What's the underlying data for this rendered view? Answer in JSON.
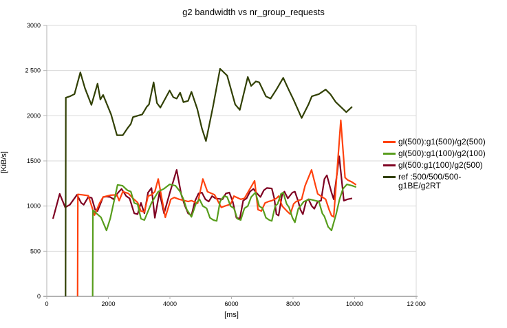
{
  "chart_data": {
    "type": "line",
    "title": "g2 bandwidth vs nr_group_requests",
    "xlabel": "[ms]",
    "ylabel": "[KiB/s]",
    "xlim": [
      0,
      12000
    ],
    "ylim": [
      0,
      3000
    ],
    "grid": "horizontal",
    "legend_position": "right",
    "grid_color": "#d9d9d9",
    "axis_color": "#b3b3b3",
    "x_ticks": [
      0,
      2000,
      4000,
      6000,
      8000,
      10000,
      12000
    ],
    "x_tick_labels": [
      "0",
      "2000",
      "4000",
      "6000",
      "8000",
      "10000",
      "12 000"
    ],
    "y_ticks": [
      0,
      500,
      1000,
      1500,
      2000,
      2500,
      3000
    ],
    "y_tick_labels": [
      "0",
      "500",
      "1000",
      "1500",
      "2000",
      "2 500",
      "3000"
    ],
    "series": [
      {
        "name": "gl(500:g1(100)/g2(500)",
        "legend_lines": [
          "gl(500:g1(100)/g2(500)"
        ],
        "legend_order": 3,
        "color": "#7e0021",
        "points": [
          [
            200,
            860
          ],
          [
            420,
            1135
          ],
          [
            600,
            985
          ],
          [
            750,
            1015
          ],
          [
            980,
            1125
          ],
          [
            1120,
            1035
          ],
          [
            1200,
            1015
          ],
          [
            1350,
            1100
          ],
          [
            1460,
            1090
          ],
          [
            1570,
            960
          ],
          [
            1650,
            945
          ],
          [
            1830,
            1100
          ],
          [
            1940,
            1105
          ],
          [
            2060,
            1100
          ],
          [
            2170,
            1075
          ],
          [
            2320,
            1150
          ],
          [
            2430,
            1190
          ],
          [
            2580,
            1110
          ],
          [
            2690,
            1085
          ],
          [
            2840,
            920
          ],
          [
            2950,
            910
          ],
          [
            3060,
            1035
          ],
          [
            3170,
            920
          ],
          [
            3290,
            1150
          ],
          [
            3400,
            1200
          ],
          [
            3510,
            870
          ],
          [
            3660,
            1150
          ],
          [
            3810,
            920
          ],
          [
            3990,
            1140
          ],
          [
            4220,
            1400
          ],
          [
            4370,
            1125
          ],
          [
            4480,
            1010
          ],
          [
            4590,
            920
          ],
          [
            4700,
            895
          ],
          [
            4810,
            1050
          ],
          [
            4930,
            1140
          ],
          [
            5040,
            1150
          ],
          [
            5150,
            1075
          ],
          [
            5260,
            1050
          ],
          [
            5370,
            1110
          ],
          [
            5480,
            1085
          ],
          [
            5710,
            1075
          ],
          [
            5820,
            1140
          ],
          [
            5930,
            1150
          ],
          [
            6040,
            1050
          ],
          [
            6160,
            870
          ],
          [
            6270,
            860
          ],
          [
            6380,
            1060
          ],
          [
            6490,
            1085
          ],
          [
            6600,
            1160
          ],
          [
            6710,
            1190
          ],
          [
            6830,
            1140
          ],
          [
            6940,
            1100
          ],
          [
            7050,
            1175
          ],
          [
            7150,
            1200
          ],
          [
            7310,
            1195
          ],
          [
            7390,
            1085
          ],
          [
            7460,
            910
          ],
          [
            7530,
            895
          ],
          [
            7650,
            1135
          ],
          [
            7720,
            1160
          ],
          [
            7830,
            1085
          ],
          [
            7980,
            1150
          ],
          [
            8060,
            1160
          ],
          [
            8170,
            1050
          ],
          [
            8240,
            960
          ],
          [
            8320,
            910
          ],
          [
            8430,
            1060
          ],
          [
            8500,
            1075
          ],
          [
            8610,
            1000
          ],
          [
            8690,
            970
          ],
          [
            8800,
            1050
          ],
          [
            8910,
            1060
          ],
          [
            9020,
            1300
          ],
          [
            9100,
            1340
          ],
          [
            9250,
            1150
          ],
          [
            9320,
            1075
          ],
          [
            9500,
            1550
          ],
          [
            9650,
            1060
          ],
          [
            9770,
            1075
          ],
          [
            9920,
            1085
          ]
        ]
      },
      {
        "name": "gl(500):g1(500)/g2(500)",
        "legend_lines": [
          "gl(500):g1(500)/g2(500)"
        ],
        "legend_order": 1,
        "color": "#ff420e",
        "points": [
          [
            1000,
            0
          ],
          [
            1010,
            1130
          ],
          [
            1150,
            1125
          ],
          [
            1350,
            1115
          ],
          [
            1550,
            900
          ],
          [
            1720,
            1035
          ],
          [
            1830,
            1100
          ],
          [
            2060,
            1120
          ],
          [
            2280,
            1125
          ],
          [
            2350,
            1060
          ],
          [
            2470,
            1160
          ],
          [
            2650,
            1140
          ],
          [
            2800,
            1085
          ],
          [
            2950,
            1040
          ],
          [
            3060,
            945
          ],
          [
            3170,
            935
          ],
          [
            3290,
            1110
          ],
          [
            3400,
            1125
          ],
          [
            3510,
            1160
          ],
          [
            3620,
            1300
          ],
          [
            3850,
            875
          ],
          [
            4030,
            1075
          ],
          [
            4140,
            1095
          ],
          [
            4300,
            1075
          ],
          [
            4480,
            1060
          ],
          [
            4590,
            1050
          ],
          [
            4700,
            1060
          ],
          [
            4900,
            1030
          ],
          [
            5070,
            1300
          ],
          [
            5220,
            1160
          ],
          [
            5450,
            1125
          ],
          [
            5670,
            985
          ],
          [
            5780,
            1000
          ],
          [
            5970,
            1020
          ],
          [
            6080,
            1110
          ],
          [
            6300,
            1075
          ],
          [
            6420,
            1085
          ],
          [
            6530,
            1150
          ],
          [
            6750,
            1280
          ],
          [
            6860,
            960
          ],
          [
            6970,
            945
          ],
          [
            7090,
            1035
          ],
          [
            7200,
            1050
          ],
          [
            7310,
            1060
          ],
          [
            7460,
            1085
          ],
          [
            7530,
            1110
          ],
          [
            7650,
            1000
          ],
          [
            7830,
            935
          ],
          [
            7910,
            910
          ],
          [
            8020,
            1025
          ],
          [
            8100,
            1050
          ],
          [
            8280,
            1075
          ],
          [
            8390,
            1225
          ],
          [
            8600,
            1400
          ],
          [
            8730,
            1225
          ],
          [
            8800,
            1135
          ],
          [
            8950,
            1100
          ],
          [
            9060,
            1075
          ],
          [
            9170,
            960
          ],
          [
            9250,
            895
          ],
          [
            9320,
            880
          ],
          [
            9550,
            1950
          ],
          [
            9690,
            1315
          ],
          [
            9770,
            1290
          ],
          [
            9920,
            1265
          ],
          [
            10050,
            1235
          ]
        ]
      },
      {
        "name": "gl(500):g1(100)/g2(100)",
        "legend_lines": [
          "gl(500):g1(100)/g2(100)"
        ],
        "legend_order": 2,
        "color": "#579d1c",
        "points": [
          [
            1490,
            0
          ],
          [
            1500,
            955
          ],
          [
            1610,
            920
          ],
          [
            1760,
            875
          ],
          [
            1940,
            730
          ],
          [
            2060,
            860
          ],
          [
            2300,
            1235
          ],
          [
            2460,
            1225
          ],
          [
            2620,
            1175
          ],
          [
            2730,
            1160
          ],
          [
            2840,
            1035
          ],
          [
            2950,
            1020
          ],
          [
            3060,
            860
          ],
          [
            3170,
            845
          ],
          [
            3400,
            1035
          ],
          [
            3620,
            1160
          ],
          [
            3800,
            1190
          ],
          [
            3990,
            1240
          ],
          [
            4180,
            1225
          ],
          [
            4330,
            1160
          ],
          [
            4440,
            1075
          ],
          [
            4550,
            960
          ],
          [
            4700,
            880
          ],
          [
            4850,
            1030
          ],
          [
            4960,
            1075
          ],
          [
            5070,
            1000
          ],
          [
            5190,
            975
          ],
          [
            5300,
            870
          ],
          [
            5410,
            845
          ],
          [
            5520,
            835
          ],
          [
            5630,
            1050
          ],
          [
            5750,
            1110
          ],
          [
            5860,
            1100
          ],
          [
            5970,
            1000
          ],
          [
            6080,
            975
          ],
          [
            6190,
            860
          ],
          [
            6300,
            845
          ],
          [
            6420,
            975
          ],
          [
            6530,
            1000
          ],
          [
            6640,
            1100
          ],
          [
            6780,
            1150
          ],
          [
            6900,
            1000
          ],
          [
            7010,
            975
          ],
          [
            7120,
            870
          ],
          [
            7230,
            845
          ],
          [
            7310,
            835
          ],
          [
            7420,
            1000
          ],
          [
            7500,
            1025
          ],
          [
            7610,
            1135
          ],
          [
            7680,
            1150
          ],
          [
            7790,
            1025
          ],
          [
            7870,
            985
          ],
          [
            7980,
            870
          ],
          [
            8060,
            820
          ],
          [
            8170,
            970
          ],
          [
            8240,
            1000
          ],
          [
            8350,
            1050
          ],
          [
            8430,
            1060
          ],
          [
            8540,
            1075
          ],
          [
            8840,
            1050
          ],
          [
            8950,
            920
          ],
          [
            9020,
            885
          ],
          [
            9140,
            770
          ],
          [
            9250,
            730
          ],
          [
            9400,
            910
          ],
          [
            9510,
            1075
          ],
          [
            9620,
            1190
          ],
          [
            9750,
            1240
          ],
          [
            9920,
            1225
          ],
          [
            10050,
            1210
          ]
        ]
      },
      {
        "name": "ref :500/500/500-g1BE/g2RT",
        "legend_lines": [
          "ref :500/500/500-",
          "g1BE/g2RT"
        ],
        "legend_order": 4,
        "color": "#314004",
        "points": [
          [
            610,
            0
          ],
          [
            620,
            2200
          ],
          [
            750,
            2215
          ],
          [
            900,
            2240
          ],
          [
            1090,
            2480
          ],
          [
            1240,
            2305
          ],
          [
            1450,
            2120
          ],
          [
            1650,
            2355
          ],
          [
            1740,
            2180
          ],
          [
            1830,
            2230
          ],
          [
            2090,
            2015
          ],
          [
            2280,
            1785
          ],
          [
            2470,
            1785
          ],
          [
            2620,
            1860
          ],
          [
            2730,
            1910
          ],
          [
            2800,
            1985
          ],
          [
            2950,
            2000
          ],
          [
            3100,
            2015
          ],
          [
            3250,
            2100
          ],
          [
            3320,
            2125
          ],
          [
            3470,
            2370
          ],
          [
            3580,
            2140
          ],
          [
            3690,
            2090
          ],
          [
            3990,
            2280
          ],
          [
            4110,
            2205
          ],
          [
            4220,
            2190
          ],
          [
            4330,
            2255
          ],
          [
            4440,
            2150
          ],
          [
            4590,
            2165
          ],
          [
            4700,
            2265
          ],
          [
            4890,
            2075
          ],
          [
            5040,
            1860
          ],
          [
            5170,
            1720
          ],
          [
            5400,
            2100
          ],
          [
            5630,
            2520
          ],
          [
            5860,
            2445
          ],
          [
            6120,
            2125
          ],
          [
            6270,
            2065
          ],
          [
            6530,
            2430
          ],
          [
            6640,
            2330
          ],
          [
            6790,
            2380
          ],
          [
            6900,
            2370
          ],
          [
            7120,
            2215
          ],
          [
            7270,
            2190
          ],
          [
            7460,
            2290
          ],
          [
            7680,
            2420
          ],
          [
            7870,
            2280
          ],
          [
            8020,
            2175
          ],
          [
            8280,
            1975
          ],
          [
            8500,
            2125
          ],
          [
            8610,
            2215
          ],
          [
            8840,
            2240
          ],
          [
            9060,
            2290
          ],
          [
            9210,
            2240
          ],
          [
            9390,
            2150
          ],
          [
            9730,
            2040
          ],
          [
            9920,
            2100
          ]
        ]
      }
    ]
  }
}
